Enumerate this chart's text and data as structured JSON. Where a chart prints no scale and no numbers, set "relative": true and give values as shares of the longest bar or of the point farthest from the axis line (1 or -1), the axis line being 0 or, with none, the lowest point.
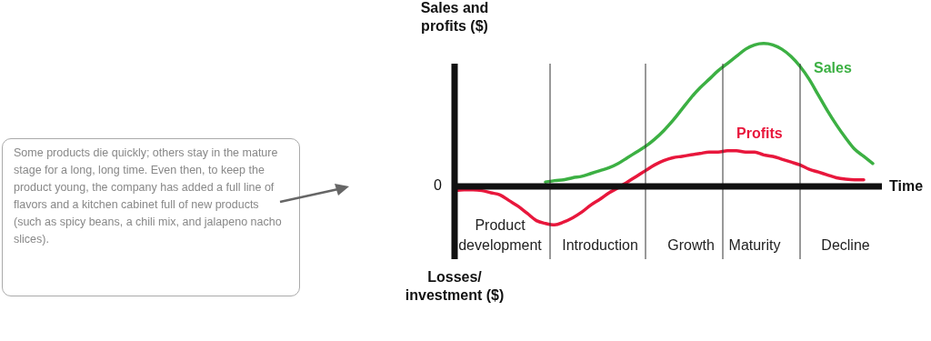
{
  "chart_data": {
    "type": "line",
    "relative": true,
    "ylabel": "Sales and profits ($)",
    "xlabel": "Time",
    "grid": "x",
    "legend": false,
    "marker": "none",
    "line_style": "solid",
    "categories": [
      null,
      null,
      null,
      null,
      null,
      "Product development",
      null,
      null,
      null,
      null,
      null,
      null,
      null,
      null,
      null,
      null,
      "Introduction",
      null,
      null,
      null,
      null,
      null,
      null,
      null,
      null,
      null,
      "Growth",
      null,
      null,
      null,
      null,
      null,
      null,
      "Maturity",
      null,
      null,
      null,
      null,
      null,
      null,
      null,
      null,
      null,
      "Decline",
      null,
      null,
      null,
      null
    ],
    "series": [
      {
        "name": "Sales",
        "color": "#3cb043",
        "values": [
          null,
          null,
          null,
          null,
          null,
          null,
          null,
          null,
          null,
          null,
          0.03,
          0.04,
          0.045,
          0.06,
          0.07,
          0.09,
          0.11,
          0.13,
          0.16,
          0.2,
          0.24,
          0.28,
          0.33,
          0.39,
          0.46,
          0.54,
          0.62,
          0.69,
          0.75,
          0.81,
          0.86,
          0.91,
          0.96,
          0.99,
          1.0,
          0.99,
          0.96,
          0.91,
          0.84,
          0.75,
          0.64,
          0.53,
          0.43,
          0.34,
          0.26,
          0.21,
          0.16,
          null
        ]
      },
      {
        "name": "Profits",
        "color": "#e8173c",
        "values": [
          -0.03,
          -0.025,
          -0.025,
          -0.03,
          -0.045,
          -0.06,
          -0.1,
          -0.14,
          -0.19,
          -0.24,
          -0.26,
          -0.27,
          -0.25,
          -0.22,
          -0.18,
          -0.13,
          -0.09,
          -0.045,
          -0.01,
          0.03,
          0.07,
          0.11,
          0.15,
          0.18,
          0.2,
          0.21,
          0.22,
          0.23,
          0.24,
          0.24,
          0.25,
          0.25,
          0.24,
          0.24,
          0.22,
          0.21,
          0.19,
          0.17,
          0.15,
          0.12,
          0.1,
          0.08,
          0.06,
          0.05,
          0.045,
          0.045,
          null,
          null
        ]
      }
    ],
    "annotations": [
      "0",
      "Losses/ investment ($)",
      "Some products die quickly; others stay in the mature stage for a long, long time. Even then, to keep the product young, the company has added a full line of flavors and a kitchen cabinet full of new products (such as spicy beans, a chili mix, and jalapeno nacho slices)."
    ]
  }
}
